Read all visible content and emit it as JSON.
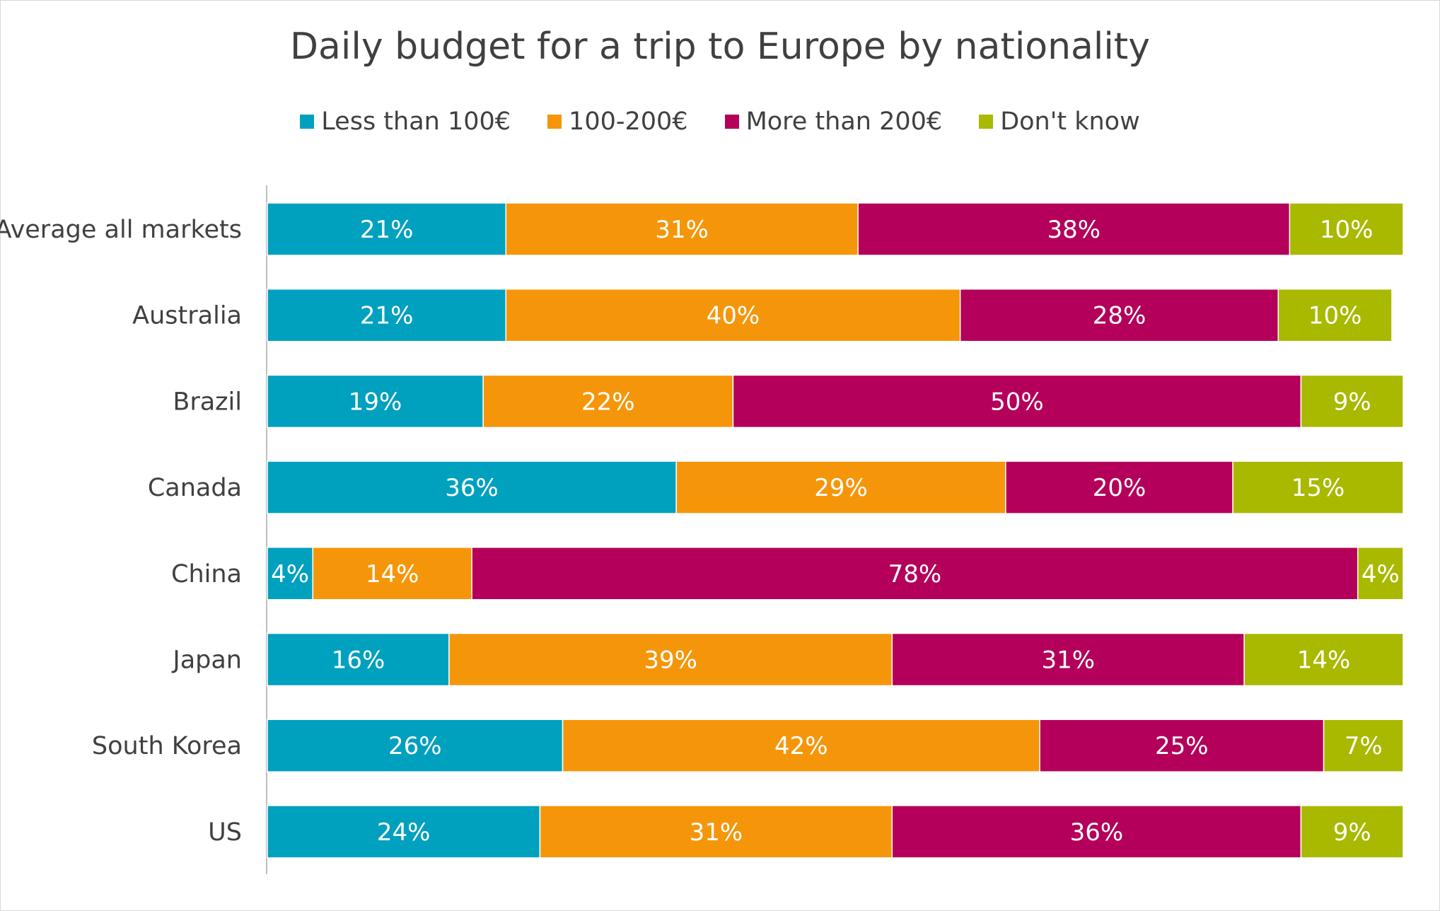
{
  "chart_data": {
    "type": "bar",
    "orientation": "horizontal",
    "stacked": true,
    "title": "Daily budget for a trip to Europe by nationality",
    "categories": [
      "Average all markets",
      "Australia",
      "Brazil",
      "Canada",
      "China",
      "Japan",
      "South Korea",
      "US"
    ],
    "series": [
      {
        "name": "Less than 100€",
        "color": "#00a0bf",
        "values": [
          21,
          21,
          19,
          36,
          4,
          16,
          26,
          24
        ]
      },
      {
        "name": "100-200€",
        "color": "#f5960a",
        "values": [
          31,
          40,
          22,
          29,
          14,
          39,
          42,
          31
        ]
      },
      {
        "name": "More than 200€",
        "color": "#b4005a",
        "values": [
          38,
          28,
          50,
          20,
          78,
          31,
          25,
          36
        ]
      },
      {
        "name": "Don't know",
        "color": "#a8b900",
        "values": [
          10,
          10,
          9,
          15,
          4,
          14,
          7,
          9
        ]
      }
    ],
    "value_suffix": "%",
    "xlim": [
      0,
      100
    ],
    "legend": "top",
    "grid": false
  }
}
